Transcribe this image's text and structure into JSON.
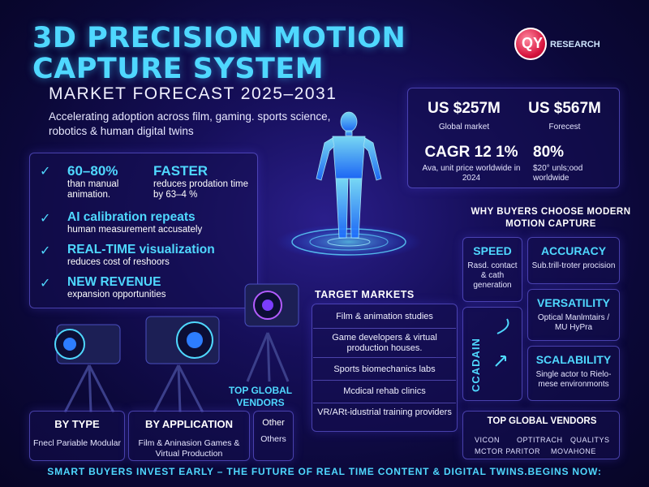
{
  "header": {
    "title": "3D PRECISION MOTION CAPTURE SYSTEM",
    "subtitle": "MARKET FORECAST 2025–2031",
    "intro": "Accelerating adoption across film, gaming. sports science, robotics & human digital twins"
  },
  "logo": {
    "mark": "QY",
    "text": "RESEARCH",
    "color": "#d6123c"
  },
  "forecast": {
    "market_2024": {
      "value": "US $257M",
      "label": "Global market"
    },
    "market_2031": {
      "value": "US $567M",
      "label": "Forecest"
    },
    "cagr": {
      "value": "CAGR 12 1%",
      "label": "Ava, unit price worldwide in 2024"
    },
    "share": {
      "value": "80%",
      "label": "$20° unls;ood worldwide"
    }
  },
  "features": [
    {
      "head": "60–80%",
      "sub": "than manual animation."
    },
    {
      "head": "FASTER",
      "sub": "reduces prodation time by 63–4 %"
    },
    {
      "head": "AI calibration repeats",
      "sub": "human measurement accusately"
    },
    {
      "head": "REAL-TIME visualization",
      "sub": "reduces cost of reshoors"
    },
    {
      "head": "NEW REVENUE",
      "sub": "expansion opportunities"
    }
  ],
  "why": {
    "title": "WHY BUYERS CHOOSE MODERN MOTION CAPTURE",
    "cards": [
      {
        "head": "SPEED",
        "sub": "Rasd. contact & cath generation"
      },
      {
        "head": "ACCURACY",
        "sub": "Sub.trill-troter procision"
      },
      {
        "head": "VERSATILITY",
        "sub": "Optical Manlmtairs / MU HyPra"
      },
      {
        "head": "SCALABILITY",
        "sub": "Single actor to Rielo-mese environmonts"
      }
    ],
    "panel_text": "CCADAIN"
  },
  "target_markets": {
    "title": "TARGET MARKETS",
    "items": [
      "Film & animation studies",
      "Game developers & virtual production houses.",
      "Sports biomechanics labs",
      "Mcdical rehab clinics",
      "VR/ARt-idustrial training providers"
    ]
  },
  "mid_vendors_label": "TOP GLOBAL VENDORS",
  "segments": {
    "by_type": {
      "head": "BY TYPE",
      "sub": "Fnecl Pariable Modular"
    },
    "by_application": {
      "head": "BY APPLICATION",
      "sub": "Film & Aninasion Games & Virtual Production"
    },
    "other": {
      "head": "Other",
      "sub": "Others"
    }
  },
  "vendors": {
    "title": "TOP GLOBAL VENDORS",
    "names": [
      "VICON",
      "OPTITRACH",
      "QUALITYS",
      "MCTOR PARITOR",
      "MOVAHONE"
    ]
  },
  "footer": "SMART BUYERS INVEST EARLY – THE FUTURE OF REAL TIME CONTENT & DIGITAL TWINS.BEGINS NOW:"
}
